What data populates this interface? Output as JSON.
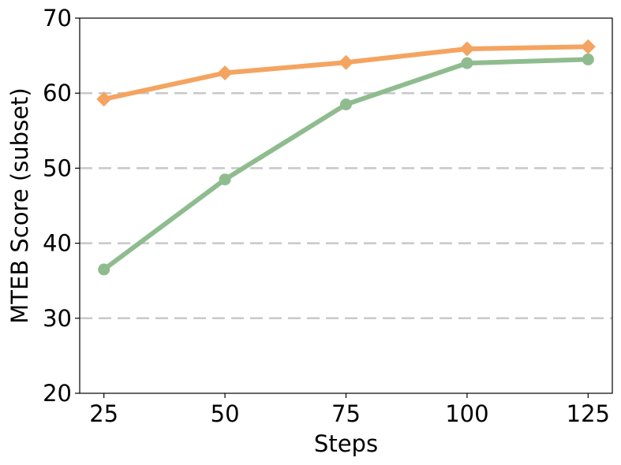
{
  "chart_data": {
    "type": "line",
    "title": "",
    "xlabel": "Steps",
    "ylabel": "MTEB Score (subset)",
    "x": [
      25,
      50,
      75,
      100,
      125
    ],
    "xlim": [
      20,
      130
    ],
    "ylim": [
      20,
      70
    ],
    "xticks": [
      "25",
      "50",
      "75",
      "100",
      "125"
    ],
    "yticks": [
      "20",
      "30",
      "40",
      "50",
      "60",
      "70"
    ],
    "grid": "horizontal dashed at 30-60",
    "legend": "none",
    "series": [
      {
        "values": [
          36.5,
          48.5,
          58.5,
          64.0,
          64.5
        ],
        "color": "#8fbc8f",
        "marker": "circle"
      },
      {
        "values": [
          59.2,
          62.7,
          64.1,
          65.9,
          66.2
        ],
        "color": "#f4a460",
        "marker": "diamond"
      }
    ]
  }
}
